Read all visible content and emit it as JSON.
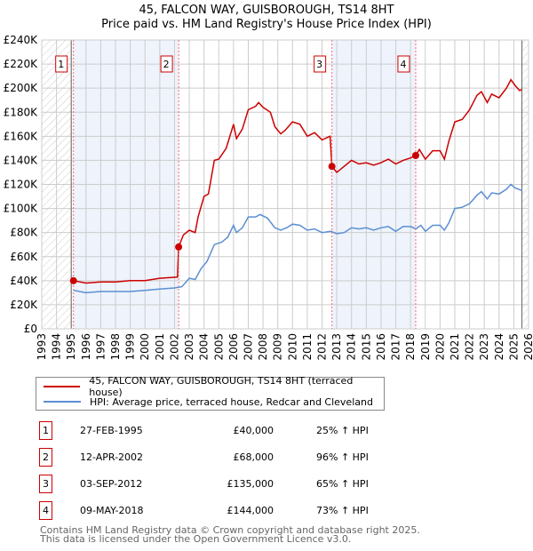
{
  "chart_data": {
    "type": "line",
    "title": "45, FALCON WAY, GUISBOROUGH, TS14 8HT",
    "subtitle": "Price paid vs. HM Land Registry's House Price Index (HPI)",
    "xlim": [
      1993,
      2026
    ],
    "ylim": [
      0,
      240000
    ],
    "yticks": [
      0,
      20000,
      40000,
      60000,
      80000,
      100000,
      120000,
      140000,
      160000,
      180000,
      200000,
      220000,
      240000
    ],
    "ytick_labels": [
      "£0",
      "£20K",
      "£40K",
      "£60K",
      "£80K",
      "£100K",
      "£120K",
      "£140K",
      "£160K",
      "£180K",
      "£200K",
      "£220K",
      "£240K"
    ],
    "xticks": [
      1993,
      1994,
      1995,
      1996,
      1997,
      1998,
      1999,
      2000,
      2001,
      2002,
      2003,
      2004,
      2005,
      2006,
      2007,
      2008,
      2009,
      2010,
      2011,
      2012,
      2013,
      2014,
      2015,
      2016,
      2017,
      2018,
      2019,
      2020,
      2021,
      2022,
      2023,
      2024,
      2025,
      2026
    ],
    "data_range": [
      1995.0,
      2025.55
    ],
    "colors": {
      "property": "#cc0000",
      "hpi": "#5b8fd4",
      "shade": "#eef3fc",
      "vline": "#ff6666"
    },
    "series": [
      {
        "name": "45, FALCON WAY, GUISBOROUGH, TS14 8HT (terraced house)",
        "color": "#cc0000",
        "x": [
          1995.15,
          1996,
          1997,
          1998,
          1999,
          2000,
          2001,
          2002.2,
          2002.28,
          2002.6,
          2003,
          2003.4,
          2003.6,
          2004,
          2004.3,
          2004.7,
          2005,
          2005.5,
          2006,
          2006.2,
          2006.6,
          2007,
          2007.5,
          2007.7,
          2008,
          2008.5,
          2008.8,
          2009.2,
          2009.5,
          2010,
          2010.5,
          2011,
          2011.5,
          2012,
          2012.55,
          2012.67,
          2013,
          2013.5,
          2014,
          2014.5,
          2015,
          2015.5,
          2016,
          2016.5,
          2017,
          2017.5,
          2018,
          2018.35,
          2018.6,
          2019,
          2019.5,
          2020,
          2020.3,
          2020.6,
          2021,
          2021.5,
          2022,
          2022.5,
          2022.8,
          2023.2,
          2023.5,
          2024,
          2024.5,
          2024.8,
          2025.1,
          2025.4,
          2025.55
        ],
        "y": [
          40000,
          38000,
          39000,
          39000,
          40000,
          40000,
          42000,
          43000,
          68000,
          78000,
          82000,
          80000,
          93000,
          110000,
          112000,
          140000,
          141000,
          150000,
          170000,
          158000,
          166000,
          182000,
          185000,
          188000,
          184000,
          180000,
          168000,
          162000,
          165000,
          172000,
          170000,
          160000,
          163000,
          157000,
          160000,
          135000,
          130000,
          135000,
          140000,
          137000,
          138000,
          136000,
          138000,
          141000,
          137000,
          140000,
          142000,
          144000,
          149000,
          141000,
          148000,
          148000,
          141000,
          156000,
          172000,
          174000,
          182000,
          194000,
          197000,
          188000,
          195000,
          192000,
          200000,
          207000,
          202000,
          198000,
          199000
        ]
      },
      {
        "name": "HPI: Average price, terraced house, Redcar and Cleveland",
        "color": "#5b8fd4",
        "x": [
          1995.15,
          1996,
          1997,
          1998,
          1999,
          2000,
          2001,
          2002,
          2002.5,
          2003,
          2003.4,
          2003.8,
          2004.2,
          2004.7,
          2005.2,
          2005.6,
          2006,
          2006.2,
          2006.6,
          2007,
          2007.5,
          2007.8,
          2008.3,
          2008.8,
          2009.2,
          2009.6,
          2010,
          2010.5,
          2011,
          2011.5,
          2012,
          2012.6,
          2013,
          2013.5,
          2014,
          2014.5,
          2015,
          2015.5,
          2016,
          2016.5,
          2017,
          2017.5,
          2018,
          2018.35,
          2018.7,
          2019,
          2019.5,
          2020,
          2020.3,
          2020.6,
          2021,
          2021.5,
          2022,
          2022.5,
          2022.8,
          2023.2,
          2023.5,
          2024,
          2024.5,
          2024.8,
          2025.1,
          2025.55
        ],
        "y": [
          32000,
          30000,
          31000,
          31000,
          31000,
          32000,
          33000,
          34000,
          35000,
          42000,
          41000,
          50000,
          56000,
          70000,
          72000,
          76000,
          86000,
          80000,
          84000,
          93000,
          93000,
          95000,
          92000,
          84000,
          82000,
          84000,
          87000,
          86000,
          82000,
          83000,
          80000,
          81000,
          79000,
          80000,
          84000,
          83000,
          84000,
          82000,
          84000,
          85000,
          81000,
          85000,
          85000,
          83000,
          86000,
          81000,
          86000,
          86000,
          82000,
          88000,
          100000,
          101000,
          104000,
          111000,
          114000,
          108000,
          113000,
          112000,
          116000,
          120000,
          117000,
          115000
        ]
      }
    ],
    "sales": [
      {
        "label": "1",
        "x": 2002.0,
        "date_x": 1995.15,
        "y": 40000,
        "date": "27-FEB-1995",
        "price": "£40,000",
        "hpi": "25% ↑ HPI"
      },
      {
        "label": "2",
        "date_x": 2002.28,
        "y": 68000,
        "date": "12-APR-2002",
        "price": "£68,000",
        "hpi": "96% ↑ HPI"
      },
      {
        "label": "3",
        "date_x": 2012.67,
        "y": 135000,
        "date": "03-SEP-2012",
        "price": "£135,000",
        "hpi": "65% ↑ HPI"
      },
      {
        "label": "4",
        "date_x": 2018.35,
        "y": 144000,
        "date": "09-MAY-2018",
        "price": "£144,000",
        "hpi": "73% ↑ HPI"
      }
    ]
  },
  "legend": {
    "property": "45, FALCON WAY, GUISBOROUGH, TS14 8HT (terraced house)",
    "hpi": "HPI: Average price, terraced house, Redcar and Cleveland"
  },
  "footer": {
    "line1": "Contains HM Land Registry data © Crown copyright and database right 2025.",
    "line2": "This data is licensed under the Open Government Licence v3.0."
  }
}
